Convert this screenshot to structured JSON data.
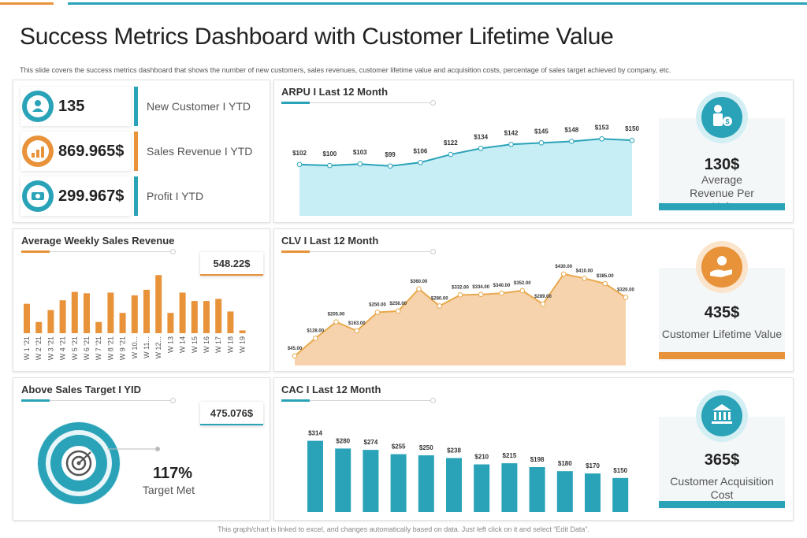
{
  "header": {
    "title": "Success Metrics Dashboard with Customer Lifetime Value",
    "subtitle": "This slide covers the success metrics dashboard that shows the number of new customers, sales revenues, customer lifetime value and acquisition costs, percentage of sales target achieved by company, etc."
  },
  "footer": {
    "note": "This graph/chart is linked to excel, and changes automatically based on data. Just left click on it and select “Edit Data”."
  },
  "colors": {
    "teal": "#2aa3b8",
    "orange": "#e8923a",
    "area_teal": "#c8eef5",
    "area_orange": "#f6d3ac"
  },
  "kpis": [
    {
      "value": "135",
      "label": "New Customer I YTD",
      "icon": "customer-icon",
      "color": "#2aa3b8"
    },
    {
      "value": "869.965$",
      "label": "Sales Revenue I YTD",
      "icon": "revenue-chart-icon",
      "color": "#e8923a"
    },
    {
      "value": "299.967$",
      "label": "Profit I YTD",
      "icon": "money-icon",
      "color": "#2aa3b8"
    }
  ],
  "weekly": {
    "title": "Average Weekly Sales Revenue",
    "badge": "548.22$"
  },
  "target": {
    "title": "Above Sales Target I YID",
    "badge": "475.076$",
    "percent": "117%",
    "label": "Target Met",
    "icon": "target-icon"
  },
  "arpu": {
    "title": "ARPU I Last 12 Month",
    "card": {
      "value": "130$",
      "label": "Average Revenue Per Unit",
      "icon": "person-money-icon"
    }
  },
  "clv": {
    "title": "CLV I Last 12 Month",
    "card": {
      "value": "435$",
      "label": "Customer Lifetime Value",
      "icon": "hand-person-icon"
    }
  },
  "cac": {
    "title": "CAC I Last 12 Month",
    "card": {
      "value": "365$",
      "label": "Customer Acquisition Cost",
      "icon": "bank-icon"
    }
  },
  "chart_data": [
    {
      "type": "bar",
      "categories": [
        "W 1 '21",
        "W 2 '21",
        "W 3 '21",
        "W 4 '21",
        "W 5 '21",
        "W 6 '21",
        "W 7 '21",
        "W 8 '21",
        "W 9 '21",
        "W 10...",
        "W 11...",
        "W 12...",
        "W 13",
        "W 14",
        "W 15",
        "W 16",
        "W 17",
        "W 18",
        "W 19"
      ],
      "values": [
        42,
        16,
        33,
        47,
        59,
        57,
        16,
        58,
        29,
        54,
        62,
        83,
        29,
        58,
        46,
        46,
        49,
        31,
        4
      ],
      "ylim": [
        0,
        90
      ]
    },
    {
      "type": "area",
      "values": [
        102,
        100,
        103,
        99,
        106,
        122,
        134,
        142,
        145,
        148,
        153,
        150
      ],
      "labels": [
        "$102",
        "$100",
        "$103",
        "$99",
        "$106",
        "$122",
        "$134",
        "$142",
        "$145",
        "$148",
        "$153",
        "$150"
      ],
      "ylim": [
        0,
        180
      ]
    },
    {
      "type": "area",
      "values": [
        45,
        128,
        205,
        163,
        250,
        256,
        360,
        280,
        332,
        334,
        340,
        352,
        289,
        430,
        410,
        385,
        320
      ],
      "labels": [
        "$45.00",
        "$128.00",
        "$205.00",
        "$163.00",
        "$250.00",
        "$256.00",
        "$360.00",
        "$280.00",
        "$332.00",
        "$334.00",
        "$340.00",
        "$352.00",
        "$289.00",
        "$430.00",
        "$410.00",
        "$385.00",
        "$320.00"
      ],
      "ylim": [
        0,
        500
      ]
    },
    {
      "type": "bar",
      "values": [
        314,
        280,
        274,
        255,
        250,
        238,
        210,
        215,
        198,
        180,
        170,
        150
      ],
      "labels": [
        "$314",
        "$280",
        "$274",
        "$255",
        "$250",
        "$238",
        "$210",
        "$215",
        "$198",
        "$180",
        "$170",
        "$150"
      ],
      "ylim": [
        0,
        330
      ]
    },
    {
      "type": "pie",
      "values": [
        117
      ],
      "title": "117%"
    }
  ]
}
